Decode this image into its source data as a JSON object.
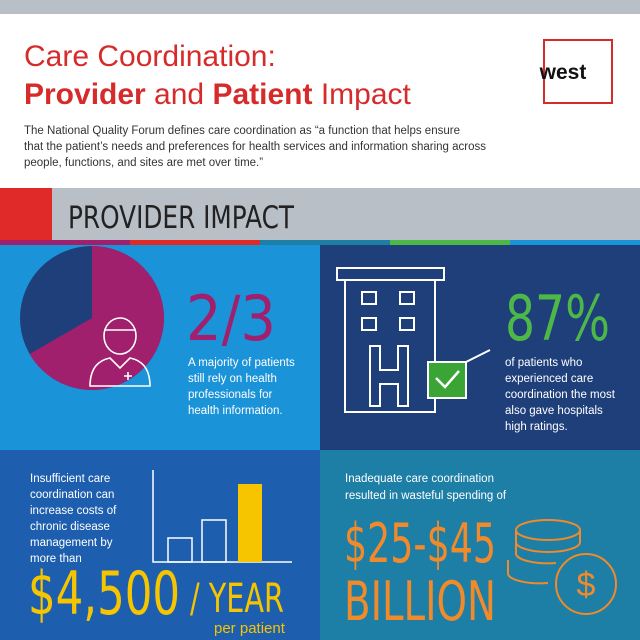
{
  "header": {
    "title_line1": "Care Coordination:",
    "title_line2": [
      "Provider",
      " and ",
      "Patient",
      " Impact"
    ],
    "logo": "west",
    "intro": [
      "The National Quality Forum defines care coordination as “a function that helps ensure",
      "that the patient’s needs and preferences for health services and information sharing across",
      "people, functions, and sites are met over time.”"
    ]
  },
  "section": {
    "heading": "PROVIDER IMPACT"
  },
  "panels": [
    {
      "stat": "2/3",
      "text": [
        "A majority of patients",
        "still rely on health",
        "professionals for",
        "health information."
      ]
    },
    {
      "stat": "87%",
      "text": [
        "of patients who",
        "experienced care",
        "coordination the most",
        "also gave hospitals",
        "high ratings."
      ]
    },
    {
      "text": [
        "Insufficient care",
        "coordination can",
        "increase costs of",
        "chronic disease",
        "management by",
        "more than"
      ],
      "stat": "$4,500",
      "unit": "/ YEAR",
      "note": "per patient"
    },
    {
      "text": [
        "Inadequate care coordination",
        "resulted in wasteful spending of"
      ],
      "stat": "$25-$45",
      "unit": "BILLION"
    }
  ]
}
